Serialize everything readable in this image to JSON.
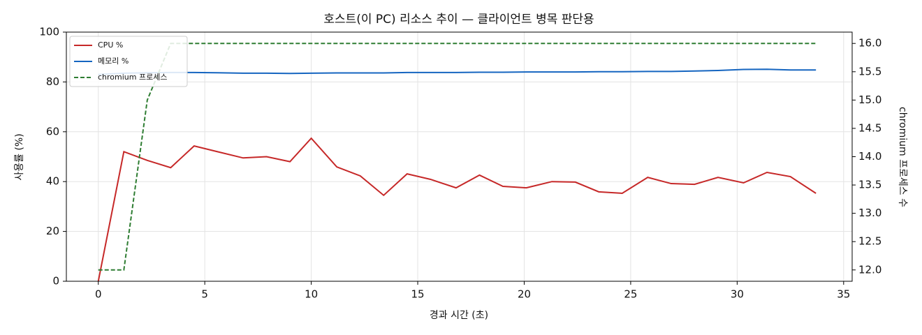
{
  "chart_data": {
    "type": "line",
    "title": "호스트(이 PC) 리소스 추이 — 클라이언트 병목 판단용",
    "xlabel": "경과 시간 (초)",
    "ylabel": "사용률 (%)",
    "y2label": "chromium 프로세스 수",
    "x": [
      0,
      1.2,
      2.3,
      3.4,
      4.5,
      5.6,
      6.8,
      7.9,
      9.0,
      10.0,
      11.2,
      12.3,
      13.4,
      14.5,
      15.6,
      16.8,
      17.9,
      19.0,
      20.1,
      21.3,
      22.4,
      23.5,
      24.6,
      25.8,
      26.9,
      28.0,
      29.1,
      30.3,
      31.4,
      32.5,
      33.7
    ],
    "series": [
      {
        "name": "CPU %",
        "color": "#c62828",
        "style": "solid",
        "axis": "y",
        "values": [
          0,
          52,
          48.5,
          45.6,
          54.3,
          52,
          49.5,
          50,
          48,
          57.4,
          45.9,
          42.3,
          34.5,
          43.1,
          40.9,
          37.5,
          42.6,
          38.1,
          37.5,
          40,
          39.8,
          35.9,
          35.3,
          41.7,
          39.2,
          38.9,
          41.7,
          39.5,
          43.7,
          42,
          35.3
        ]
      },
      {
        "name": "메모리 %",
        "color": "#1565c0",
        "style": "solid",
        "axis": "y",
        "values": [
          83,
          83.5,
          83.7,
          83.8,
          83.8,
          83.7,
          83.5,
          83.5,
          83.4,
          83.5,
          83.6,
          83.6,
          83.6,
          83.8,
          83.8,
          83.8,
          83.9,
          83.9,
          84,
          84,
          84,
          84.1,
          84.1,
          84.2,
          84.2,
          84.4,
          84.6,
          85.0,
          85.1,
          84.8,
          84.8
        ]
      },
      {
        "name": "chromium 프로세스",
        "color": "#2e7d32",
        "style": "dashed",
        "axis": "y2",
        "values": [
          12,
          12,
          15,
          16,
          16,
          16,
          16,
          16,
          16,
          16,
          16,
          16,
          16,
          16,
          16,
          16,
          16,
          16,
          16,
          16,
          16,
          16,
          16,
          16,
          16,
          16,
          16,
          16,
          16,
          16,
          16
        ]
      }
    ],
    "xlim": [
      -1.5,
      35.4
    ],
    "xticks": [
      0,
      5,
      10,
      15,
      20,
      25,
      30,
      35
    ],
    "ylim": [
      0,
      100
    ],
    "yticks": [
      0,
      20,
      40,
      60,
      80,
      100
    ],
    "y2lim": [
      11.8,
      16.2
    ],
    "y2ticks": [
      {
        "value": 12,
        "label": "12.0"
      },
      {
        "value": 12.5,
        "label": "12.5"
      },
      {
        "value": 13,
        "label": "13.0"
      },
      {
        "value": 13.5,
        "label": "13.5"
      },
      {
        "value": 14,
        "label": "14.0"
      },
      {
        "value": 14.5,
        "label": "14.5"
      },
      {
        "value": 15,
        "label": "15.0"
      },
      {
        "value": 15.5,
        "label": "15.5"
      },
      {
        "value": 16,
        "label": "16.0"
      }
    ],
    "grid": true,
    "legend": "upper-left"
  }
}
